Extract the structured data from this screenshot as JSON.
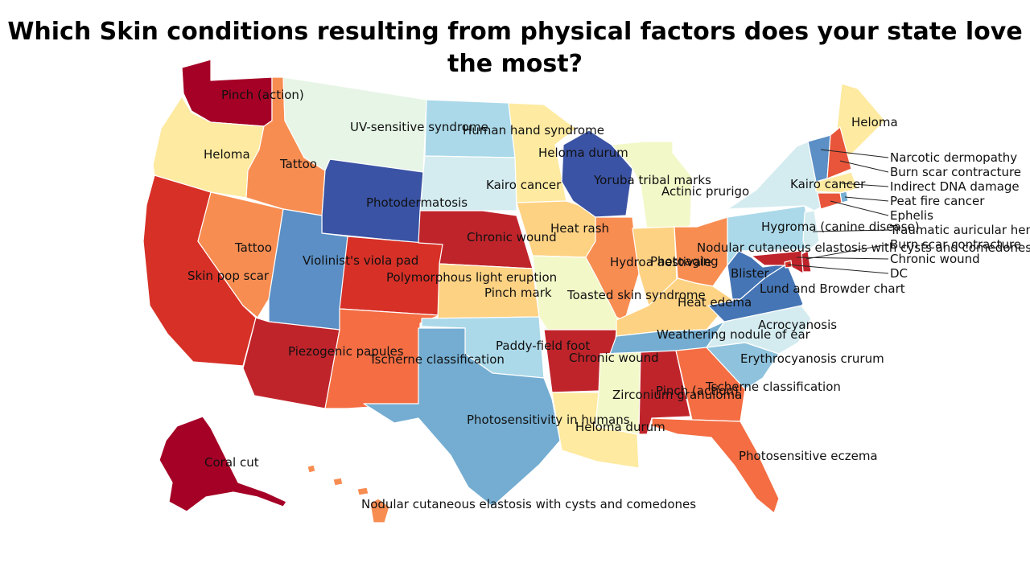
{
  "title": "Which Skin conditions resulting from physical factors does your state love the most?",
  "palette": {
    "c1": "#a50026",
    "c2": "#c0242b",
    "c3": "#d73027",
    "c4": "#e8553a",
    "c5": "#f46d43",
    "c6": "#f88d52",
    "c7": "#fdae61",
    "c8": "#fed283",
    "c9": "#feeaa0",
    "c10": "#f3f8c8",
    "c11": "#e6f5e5",
    "c12": "#d4ecf0",
    "c13": "#abd9e9",
    "c14": "#8fc3dd",
    "c15": "#74add1",
    "c16": "#5b8fc5",
    "c17": "#4575b4",
    "c18": "#3a53a4"
  },
  "states": [
    {
      "code": "WA",
      "condition": "Pinch (action)",
      "color": "c1"
    },
    {
      "code": "OR",
      "condition": "Heloma",
      "color": "c9"
    },
    {
      "code": "CA",
      "condition": "Skin pop scar",
      "color": "c3"
    },
    {
      "code": "NV",
      "condition": "Tattoo",
      "color": "c6"
    },
    {
      "code": "ID",
      "condition": "Tattoo",
      "color": "c6"
    },
    {
      "code": "MT",
      "condition": "",
      "color": "c11"
    },
    {
      "code": "WY",
      "condition": "Photodermatosis",
      "color": "c18"
    },
    {
      "code": "UT",
      "condition": "Violinist's viola pad",
      "color": "c16"
    },
    {
      "code": "AZ",
      "condition": "Piezogenic papules",
      "color": "c2"
    },
    {
      "code": "CO",
      "condition": "Polymorphous light eruption",
      "color": "c3"
    },
    {
      "code": "NM",
      "condition": "Tscherne classification",
      "color": "c5"
    },
    {
      "code": "ND",
      "condition": "UV-sensitive syndrome",
      "color": "c13"
    },
    {
      "code": "SD",
      "condition": "Kairo cancer",
      "color": "c12"
    },
    {
      "code": "NE",
      "condition": "Chronic wound",
      "color": "c2"
    },
    {
      "code": "KS",
      "condition": "Pinch mark",
      "color": "c8"
    },
    {
      "code": "OK",
      "condition": "Paddy-field foot",
      "color": "c13"
    },
    {
      "code": "TX",
      "condition": "Photosensitivity in humans",
      "color": "c15"
    },
    {
      "code": "MN",
      "condition": "Human hand syndrome",
      "color": "c9"
    },
    {
      "code": "IA",
      "condition": "Heat rash",
      "color": "c8"
    },
    {
      "code": "MO",
      "condition": "Toasted skin syndrome",
      "color": "c10"
    },
    {
      "code": "AR",
      "condition": "Chronic wound",
      "color": "c2"
    },
    {
      "code": "LA",
      "condition": "Heloma durum",
      "color": "c9"
    },
    {
      "code": "WI",
      "condition": "Yoruba tribal marks",
      "color": "c18"
    },
    {
      "code": "MI",
      "condition": "Actinic prurigo",
      "color": "c10"
    },
    {
      "code": "IL",
      "condition": "Hydroa aestivale",
      "color": "c6"
    },
    {
      "code": "IN",
      "condition": "Photoaging",
      "color": "c8"
    },
    {
      "code": "OH",
      "condition": "Nodular cutaneous elastosis with cysts and comedones",
      "color": "c6"
    },
    {
      "code": "KY",
      "condition": "Heat edema",
      "color": "c8"
    },
    {
      "code": "TN",
      "condition": "Weathering nodule of ear",
      "color": "c15"
    },
    {
      "code": "MS",
      "condition": "Zirconium granuloma",
      "color": "c10"
    },
    {
      "code": "AL",
      "condition": "Pinch (action)",
      "color": "c2"
    },
    {
      "code": "GA",
      "condition": "Tscherne classification",
      "color": "c5"
    },
    {
      "code": "FL",
      "condition": "Photosensitive eczema",
      "color": "c5"
    },
    {
      "code": "SC",
      "condition": "Erythrocyanosis crurum",
      "color": "c14"
    },
    {
      "code": "NC",
      "condition": "Acrocyanosis",
      "color": "c12"
    },
    {
      "code": "VA",
      "condition": "Lund and Browder chart",
      "color": "c17"
    },
    {
      "code": "WV",
      "condition": "Blister",
      "color": "c17"
    },
    {
      "code": "PA",
      "condition": "Hygroma (canine disease)",
      "color": "c13"
    },
    {
      "code": "NY",
      "condition": "Kairo cancer",
      "color": "c12"
    },
    {
      "code": "ME",
      "condition": "Heloma",
      "color": "c9"
    },
    {
      "code": "VT",
      "condition": "Narcotic dermopathy",
      "color": "c16"
    },
    {
      "code": "NH",
      "condition": "Burn scar contracture",
      "color": "c4"
    },
    {
      "code": "MA",
      "condition": "Indirect DNA damage",
      "color": "c9"
    },
    {
      "code": "RI",
      "condition": "Peat fire cancer",
      "color": "c15"
    },
    {
      "code": "CT",
      "condition": "Ephelis",
      "color": "c4"
    },
    {
      "code": "NJ",
      "condition": "Traumatic auricular hematoma",
      "color": "c12"
    },
    {
      "code": "DE",
      "condition": "Burn scar contracture",
      "color": "c2"
    },
    {
      "code": "MD",
      "condition": "Chronic wound",
      "color": "c2"
    },
    {
      "code": "DC",
      "condition": "DC",
      "color": "c3"
    },
    {
      "code": "AK",
      "condition": "Coral cut",
      "color": "c1"
    },
    {
      "code": "HI",
      "condition": "Nodular cutaneous elastosis with cysts and comedones",
      "color": "c6"
    }
  ],
  "labels": {
    "wa": "Pinch (action)",
    "or": "Heloma",
    "ca": "Skin pop scar",
    "nv": "Tattoo",
    "id": "Tattoo",
    "wy": "Photodermatosis",
    "ut": "Violinist's viola pad",
    "az": "Piezogenic papules",
    "co": "Polymorphous light eruption",
    "nm": "Tscherne classification",
    "nd": "UV-sensitive syndrome",
    "sd": "Kairo cancer",
    "ne": "Chronic wound",
    "ks": "Pinch mark",
    "ok": "Paddy-field foot",
    "tx": "Photosensitivity in humans",
    "mn1": "Human hand syndrome",
    "mn2": "Heloma durum",
    "ia": "Heat rash",
    "mo": "Toasted skin syndrome",
    "ar": "Chronic wound",
    "la": "Heloma durum",
    "wi": "Yoruba tribal marks",
    "mi": "Actinic prurigo",
    "il": "Hydroa aestivale",
    "in": "Photoaging",
    "oh": "Nodular cutaneous elastosis with cysts and comedones",
    "ky": "Heat edema",
    "tn": "Weathering nodule of ear",
    "ms": "Zirconium granuloma",
    "al": "Pinch (action)",
    "ga": "Tscherne classification",
    "fl": "Photosensitive eczema",
    "sc": "Erythrocyanosis crurum",
    "nc": "Acrocyanosis",
    "va": "Lund and Browder chart",
    "wv": "Blister",
    "pa": "Hygroma (canine disease)",
    "ny": "Kairo cancer",
    "me": "Heloma",
    "vt": "Narcotic dermopathy",
    "nh": "Burn scar contracture",
    "ma": "Indirect DNA damage",
    "ri": "Peat fire cancer",
    "ct": "Ephelis",
    "nj": "Traumatic auricular hematoma",
    "de": "Burn scar contracture",
    "md": "Chronic wound",
    "dc": "DC",
    "ak": "Coral cut",
    "hi": "Nodular cutaneous elastosis with cysts and comedones"
  }
}
